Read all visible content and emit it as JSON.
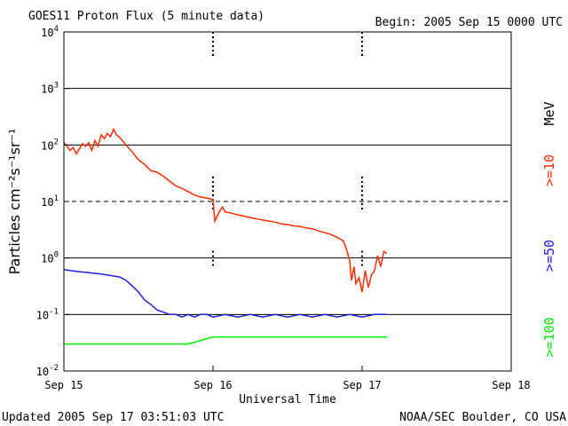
{
  "chart_data": {
    "type": "line",
    "title": "GOES11 Proton Flux (5 minute data)",
    "begin_label": "Begin: 2005 Sep 15 0000 UTC",
    "xlabel": "Universal Time",
    "ylabel": "Particles cm⁻²s⁻¹sr⁻¹",
    "yscale": "log",
    "ylim": [
      0.01,
      10000
    ],
    "xlim": [
      0,
      72
    ],
    "x_unit": "hours since Sep 15 0000 UTC",
    "x_ticks": [
      {
        "value": 0,
        "label": "Sep 15"
      },
      {
        "value": 24,
        "label": "Sep 16"
      },
      {
        "value": 48,
        "label": "Sep 17"
      },
      {
        "value": 72,
        "label": "Sep 18"
      }
    ],
    "y_ticks": [
      {
        "value": 10000,
        "base": "10",
        "exp": "4"
      },
      {
        "value": 1000,
        "base": "10",
        "exp": "3"
      },
      {
        "value": 100,
        "base": "10",
        "exp": "2"
      },
      {
        "value": 10,
        "base": "10",
        "exp": "1"
      },
      {
        "value": 1,
        "base": "10",
        "exp": "0"
      },
      {
        "value": 0.1,
        "base": "10",
        "exp": "-1"
      },
      {
        "value": 0.01,
        "base": "10",
        "exp": "-2"
      }
    ],
    "threshold_line": {
      "value": 10,
      "style": "dashed"
    },
    "grid": true,
    "energy_unit": "MeV",
    "series": [
      {
        "name": ">=10",
        "color": "#ff2a00",
        "points": [
          [
            0,
            110
          ],
          [
            0.5,
            95
          ],
          [
            1,
            80
          ],
          [
            1.5,
            90
          ],
          [
            2,
            70
          ],
          [
            2.5,
            85
          ],
          [
            3,
            105
          ],
          [
            3.5,
            95
          ],
          [
            4,
            110
          ],
          [
            4.5,
            80
          ],
          [
            5,
            120
          ],
          [
            5.5,
            95
          ],
          [
            6,
            150
          ],
          [
            6.5,
            130
          ],
          [
            7,
            160
          ],
          [
            7.5,
            140
          ],
          [
            8,
            190
          ],
          [
            8.5,
            150
          ],
          [
            9,
            135
          ],
          [
            10,
            100
          ],
          [
            11,
            75
          ],
          [
            12,
            55
          ],
          [
            13,
            45
          ],
          [
            14,
            35
          ],
          [
            15,
            33
          ],
          [
            16,
            28
          ],
          [
            17,
            23
          ],
          [
            18,
            19
          ],
          [
            19,
            17
          ],
          [
            20,
            15
          ],
          [
            21,
            13
          ],
          [
            22,
            12
          ],
          [
            23,
            11.5
          ],
          [
            24,
            10.8
          ],
          [
            24.3,
            4.5
          ],
          [
            25,
            6.5
          ],
          [
            25.5,
            8
          ],
          [
            26,
            6.5
          ],
          [
            27,
            6.2
          ],
          [
            28,
            5.8
          ],
          [
            29,
            5.5
          ],
          [
            30,
            5.2
          ],
          [
            31,
            4.9
          ],
          [
            32,
            4.7
          ],
          [
            33,
            4.5
          ],
          [
            34,
            4.3
          ],
          [
            35,
            4.0
          ],
          [
            36,
            3.9
          ],
          [
            37,
            3.7
          ],
          [
            38,
            3.6
          ],
          [
            39,
            3.4
          ],
          [
            40,
            3.3
          ],
          [
            41,
            3.0
          ],
          [
            42,
            2.8
          ],
          [
            43,
            2.6
          ],
          [
            44,
            2.3
          ],
          [
            45,
            2.0
          ],
          [
            45.5,
            1.4
          ],
          [
            46,
            0.9
          ],
          [
            46.3,
            0.4
          ],
          [
            46.7,
            0.7
          ],
          [
            47,
            0.35
          ],
          [
            47.5,
            0.45
          ],
          [
            48,
            0.25
          ],
          [
            48.5,
            0.6
          ],
          [
            49,
            0.3
          ],
          [
            49.5,
            0.5
          ],
          [
            50,
            0.6
          ],
          [
            50.5,
            1.1
          ],
          [
            51,
            0.7
          ],
          [
            51.5,
            1.3
          ],
          [
            52,
            1.2
          ]
        ]
      },
      {
        "name": ">=50",
        "color": "#2020e0",
        "points": [
          [
            0,
            0.62
          ],
          [
            2,
            0.58
          ],
          [
            4,
            0.55
          ],
          [
            6,
            0.52
          ],
          [
            8,
            0.48
          ],
          [
            9,
            0.46
          ],
          [
            10,
            0.4
          ],
          [
            11,
            0.32
          ],
          [
            12,
            0.25
          ],
          [
            13,
            0.18
          ],
          [
            14,
            0.15
          ],
          [
            15,
            0.12
          ],
          [
            16,
            0.11
          ],
          [
            17,
            0.1
          ],
          [
            18,
            0.1
          ],
          [
            19,
            0.09
          ],
          [
            20,
            0.1
          ],
          [
            21,
            0.09
          ],
          [
            22,
            0.1
          ],
          [
            23,
            0.1
          ],
          [
            24,
            0.09
          ],
          [
            26,
            0.1
          ],
          [
            28,
            0.09
          ],
          [
            30,
            0.1
          ],
          [
            32,
            0.09
          ],
          [
            34,
            0.1
          ],
          [
            36,
            0.09
          ],
          [
            38,
            0.1
          ],
          [
            40,
            0.09
          ],
          [
            42,
            0.1
          ],
          [
            44,
            0.09
          ],
          [
            46,
            0.1
          ],
          [
            48,
            0.09
          ],
          [
            50,
            0.1
          ],
          [
            52,
            0.1
          ]
        ]
      },
      {
        "name": ">=100",
        "color": "#00ee00",
        "points": [
          [
            0,
            0.03
          ],
          [
            4,
            0.03
          ],
          [
            8,
            0.03
          ],
          [
            12,
            0.03
          ],
          [
            16,
            0.03
          ],
          [
            20,
            0.03
          ],
          [
            24,
            0.04
          ],
          [
            28,
            0.04
          ],
          [
            32,
            0.04
          ],
          [
            36,
            0.04
          ],
          [
            40,
            0.04
          ],
          [
            44,
            0.04
          ],
          [
            48,
            0.04
          ],
          [
            52,
            0.04
          ]
        ]
      }
    ]
  },
  "footer": {
    "updated": "Updated 2005 Sep 17 03:51:03 UTC",
    "source": "NOAA/SEC Boulder, CO USA"
  }
}
